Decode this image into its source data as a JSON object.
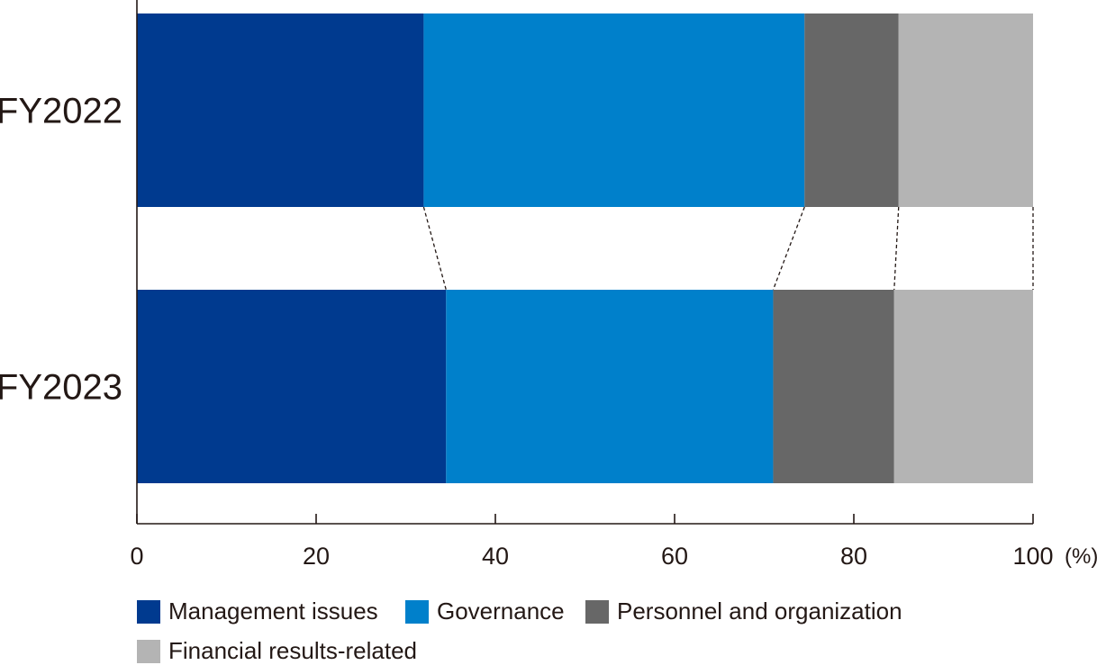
{
  "chart_data": {
    "type": "bar",
    "orientation": "horizontal",
    "stacked": true,
    "categories": [
      "FY2022",
      "FY2023"
    ],
    "series": [
      {
        "name": "Management issues",
        "color": "#003a8f",
        "values": [
          32,
          34.5
        ]
      },
      {
        "name": "Governance",
        "color": "#0080cb",
        "values": [
          42.5,
          36.5
        ]
      },
      {
        "name": "Personnel and organization",
        "color": "#676767",
        "values": [
          10.5,
          13.5
        ]
      },
      {
        "name": "Financial results-related",
        "color": "#b4b4b4",
        "values": [
          15,
          15.5
        ]
      }
    ],
    "xlim": [
      0,
      100
    ],
    "xticks": [
      "0",
      "20",
      "40",
      "60",
      "80",
      "100"
    ],
    "unit": "(%)",
    "legend_position": "bottom",
    "connector_lines": "dashed",
    "grid": false
  }
}
